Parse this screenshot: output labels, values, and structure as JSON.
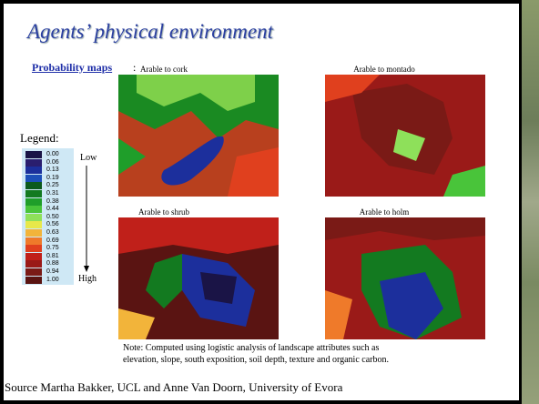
{
  "header": {
    "title": "Agents’ physical environment"
  },
  "subtitle": {
    "text": "Probability maps",
    "suffix": ":"
  },
  "maps": [
    {
      "label": "Arable to cork"
    },
    {
      "label": "Arable to montado"
    },
    {
      "label": "Arable to shrub"
    },
    {
      "label": "Arable to holm"
    }
  ],
  "legend": {
    "title": "Legend:",
    "low": "Low",
    "high": "High",
    "labels": [
      "0.00",
      "0.06",
      "0.13",
      "0.19",
      "0.25",
      "0.31",
      "0.38",
      "0.44",
      "0.50",
      "0.56",
      "0.63",
      "0.69",
      "0.75",
      "0.81",
      "0.88",
      "0.94",
      "1.00"
    ],
    "colors": [
      "#1a1446",
      "#2a1e6e",
      "#1c2f9c",
      "#1d4fb8",
      "#0c5a1c",
      "#137a20",
      "#1f9e2a",
      "#49c43a",
      "#8ee05a",
      "#e8e84a",
      "#f2b43a",
      "#ef7a2a",
      "#e0401e",
      "#c0201a",
      "#9a1a18",
      "#7a1a16",
      "#5a1412"
    ]
  },
  "note": {
    "lines": [
      "Note: Computed using logistic analysis of landscape attributes such as",
      "elevation, slope, south exposition, soil depth, texture and organic carbon."
    ]
  },
  "source": "Source Martha Bakker, UCL and Anne Van Doorn, University of Evora"
}
